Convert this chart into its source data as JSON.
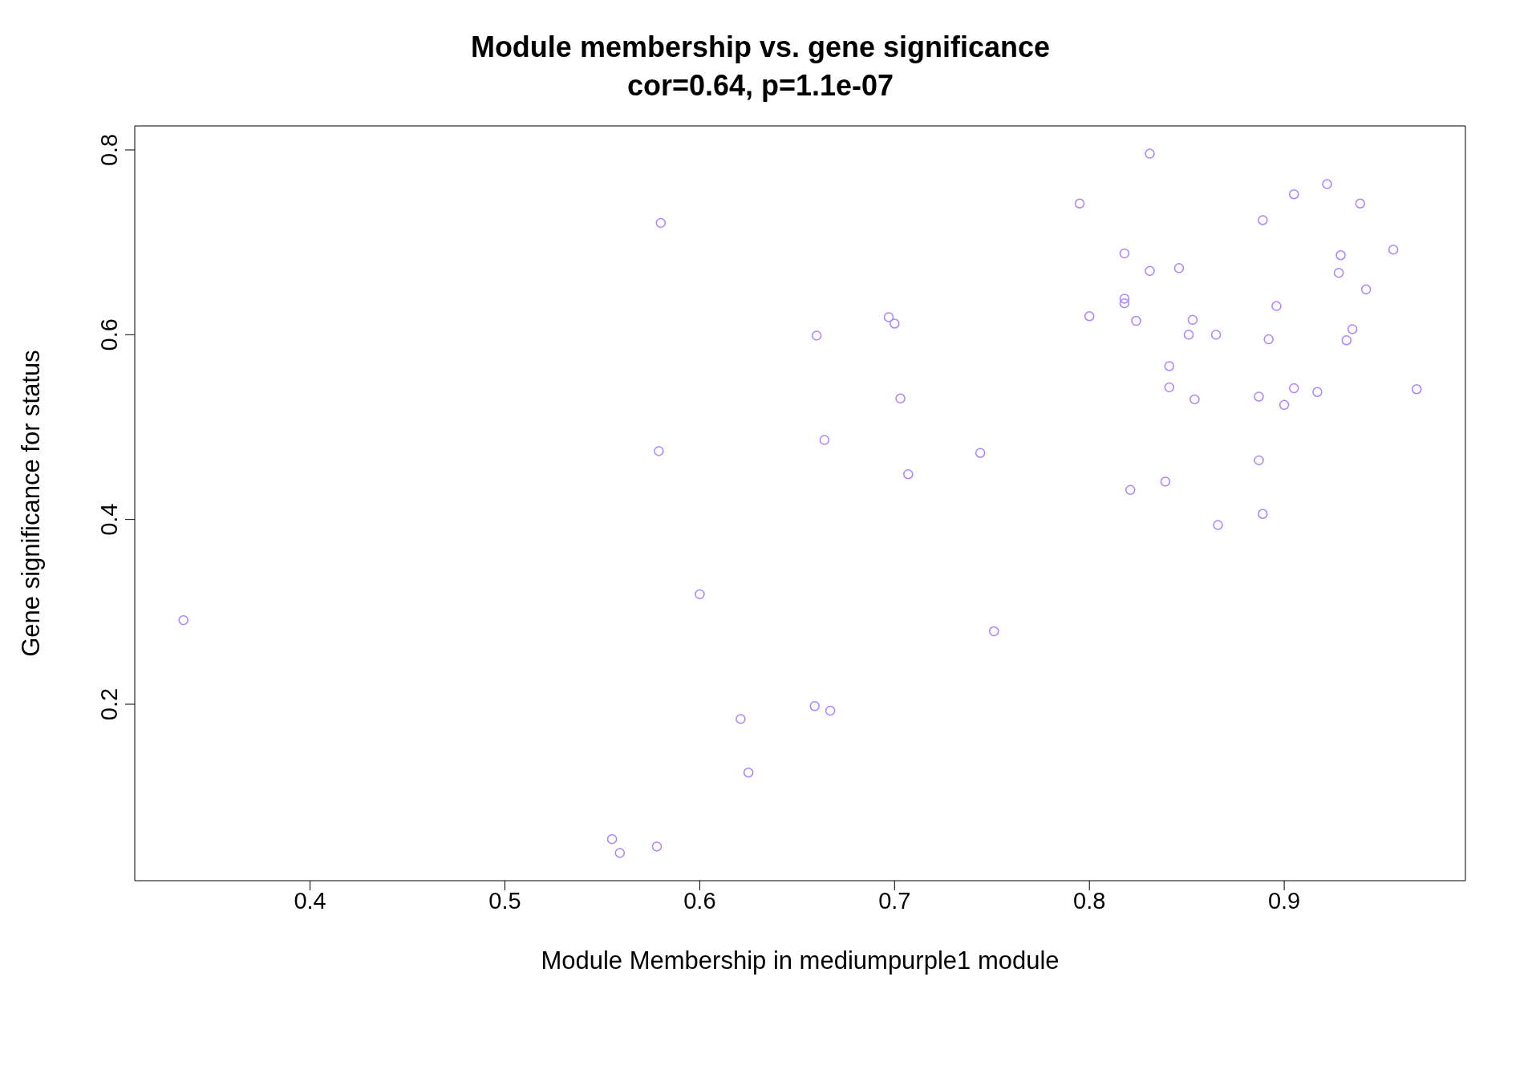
{
  "chart_data": {
    "type": "scatter",
    "title": "Module membership vs. gene significance",
    "subtitle": "cor=0.64, p=1.1e-07",
    "xlabel": "Module Membership in mediumpurple1 module",
    "ylabel": "Gene significance for status",
    "xlim": [
      0.31,
      0.993
    ],
    "ylim": [
      0.009,
      0.826
    ],
    "xticks": [
      0.4,
      0.5,
      0.6,
      0.7,
      0.8,
      0.9
    ],
    "yticks": [
      0.2,
      0.4,
      0.6,
      0.8
    ],
    "grid": false,
    "legend": false,
    "marker": "circle",
    "series": [
      {
        "color": "#ab82ff",
        "x": [
          0.335,
          0.58,
          0.579,
          0.6,
          0.555,
          0.559,
          0.578,
          0.621,
          0.625,
          0.659,
          0.667,
          0.66,
          0.664,
          0.697,
          0.7,
          0.703,
          0.707,
          0.744,
          0.751,
          0.795,
          0.831,
          0.8,
          0.818,
          0.818,
          0.818,
          0.824,
          0.831,
          0.846,
          0.841,
          0.841,
          0.821,
          0.839,
          0.853,
          0.851,
          0.854,
          0.865,
          0.866,
          0.889,
          0.905,
          0.922,
          0.939,
          0.896,
          0.892,
          0.887,
          0.9,
          0.905,
          0.917,
          0.887,
          0.889,
          0.929,
          0.928,
          0.942,
          0.956,
          0.935,
          0.932,
          0.968
        ],
        "values": [
          0.291,
          0.721,
          0.474,
          0.319,
          0.054,
          0.039,
          0.046,
          0.184,
          0.126,
          0.198,
          0.193,
          0.599,
          0.486,
          0.619,
          0.612,
          0.531,
          0.449,
          0.472,
          0.279,
          0.742,
          0.796,
          0.62,
          0.688,
          0.639,
          0.634,
          0.615,
          0.669,
          0.672,
          0.566,
          0.543,
          0.432,
          0.441,
          0.616,
          0.6,
          0.53,
          0.6,
          0.394,
          0.724,
          0.752,
          0.763,
          0.742,
          0.631,
          0.595,
          0.533,
          0.524,
          0.542,
          0.538,
          0.464,
          0.406,
          0.686,
          0.667,
          0.649,
          0.692,
          0.606,
          0.594,
          0.541
        ]
      }
    ]
  }
}
